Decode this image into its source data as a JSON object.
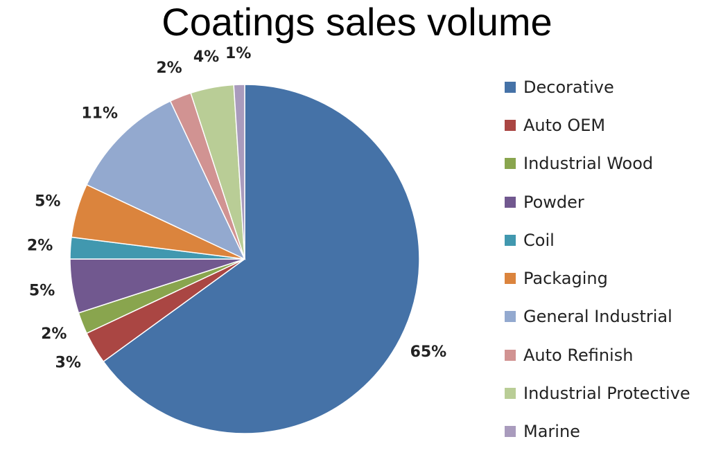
{
  "chart_data": {
    "type": "pie",
    "title": "Coatings sales volume",
    "categories": [
      "Decorative",
      "Auto OEM",
      "Industrial Wood",
      "Powder",
      "Coil",
      "Packaging",
      "General Industrial",
      "Auto Refinish",
      "Industrial Protective",
      "Marine"
    ],
    "values": [
      65,
      3,
      2,
      5,
      2,
      5,
      11,
      2,
      4,
      1
    ],
    "labels": [
      "65%",
      "3%",
      "2%",
      "5%",
      "2%",
      "5%",
      "11%",
      "2%",
      "4%",
      "1%"
    ],
    "colors": [
      "#4572A7",
      "#AA4643",
      "#89A54E",
      "#71588F",
      "#4198AF",
      "#DB843D",
      "#93A9CF",
      "#D19392",
      "#B9CD96",
      "#A99BBD"
    ],
    "legend_position": "right",
    "start_angle": "12 o'clock, clockwise"
  }
}
